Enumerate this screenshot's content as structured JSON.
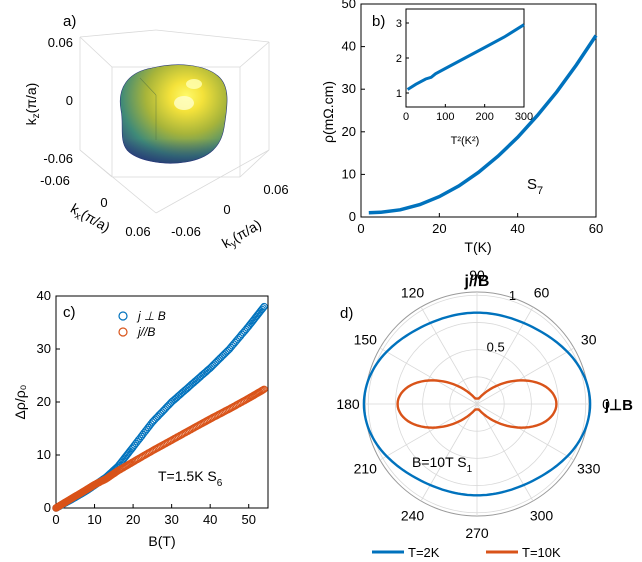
{
  "colors": {
    "blue": "#0072BD",
    "orange": "#D95319",
    "grid": "#d9d9d9"
  },
  "panels": {
    "a": {
      "label": "a)",
      "ticks": {
        "kz": [
          "0.06",
          "0",
          "-0.06"
        ],
        "kx": [
          "-0.06",
          "0",
          "0.06"
        ],
        "ky": [
          "-0.06",
          "0",
          "0.06"
        ]
      },
      "xlabel": "k_x(π/a)",
      "ylabel": "k_y(π/a)",
      "zlabel": "k_z(π/a)"
    },
    "b": {
      "label": "b)",
      "annotation_main": "S",
      "annotation_sub": "7"
    },
    "c": {
      "label": "c)",
      "annotation": "T=1.5K S",
      "annotation_sub": "6"
    },
    "d": {
      "label": "d)",
      "title": "j//B",
      "right_label": "j⊥B",
      "annotation": "B=10T S",
      "annotation_sub": "1",
      "legend": [
        "T=2K",
        "T=10K"
      ]
    }
  },
  "chart_data": [
    {
      "panel": "a",
      "type": "other",
      "description": "3D surface (Fermi surface)",
      "xlim": [
        -0.06,
        0.06
      ],
      "ylim": [
        -0.06,
        0.06
      ],
      "zlim": [
        -0.06,
        0.06
      ]
    },
    {
      "panel": "b",
      "type": "line",
      "xlabel": "T(K)",
      "ylabel": "ρ(mΩ.cm)",
      "xlim": [
        0,
        60
      ],
      "ylim": [
        0,
        50
      ],
      "xticks": [
        0,
        20,
        40,
        60
      ],
      "yticks": [
        0,
        10,
        20,
        30,
        40,
        50
      ],
      "series": [
        {
          "x": [
            2,
            5,
            10,
            15,
            20,
            25,
            30,
            35,
            40,
            45,
            50,
            55,
            60
          ],
          "y": [
            1.0,
            1.1,
            1.7,
            2.9,
            4.8,
            7.3,
            10.5,
            14.3,
            18.7,
            23.8,
            29.4,
            35.7,
            42.6
          ]
        }
      ],
      "inset": {
        "xlabel": "T²(K²)",
        "xlim": [
          0,
          300
        ],
        "ylim": [
          0.6,
          3.4
        ],
        "xticks": [
          0,
          100,
          200,
          300
        ],
        "yticks": [
          1,
          2,
          3
        ],
        "series": [
          {
            "x": [
              4,
              25,
              50,
              64,
              75,
              100,
              150,
              200,
              250,
              300
            ],
            "y": [
              1.1,
              1.25,
              1.4,
              1.45,
              1.55,
              1.7,
              2.0,
              2.3,
              2.6,
              2.95
            ]
          }
        ]
      }
    },
    {
      "panel": "c",
      "type": "scatter",
      "xlabel": "B(T)",
      "ylabel": "Δρ/ρ₀",
      "xlim": [
        0,
        55
      ],
      "ylim": [
        0,
        40
      ],
      "xticks": [
        0,
        10,
        20,
        30,
        40,
        50
      ],
      "yticks": [
        0,
        10,
        20,
        30,
        40
      ],
      "series": [
        {
          "name": "j ⊥ B",
          "x": [
            0,
            2,
            5,
            8,
            10,
            13,
            16,
            20,
            25,
            30,
            35,
            40,
            45,
            50,
            54
          ],
          "y": [
            0,
            0.8,
            2.0,
            3.3,
            4.3,
            5.8,
            7.8,
            11.5,
            16.2,
            20.0,
            23.2,
            26.4,
            30.0,
            34.3,
            38.0
          ]
        },
        {
          "name": "j//B",
          "x": [
            0,
            2,
            5,
            8,
            10,
            13,
            16,
            20,
            25,
            30,
            35,
            40,
            45,
            50,
            54
          ],
          "y": [
            0,
            0.9,
            2.2,
            3.5,
            4.4,
            5.5,
            7.0,
            8.7,
            10.8,
            12.8,
            14.8,
            16.8,
            18.7,
            20.7,
            22.4
          ]
        }
      ]
    },
    {
      "panel": "d",
      "type": "polar",
      "angle_ticks_deg": [
        0,
        30,
        60,
        90,
        120,
        150,
        180,
        210,
        240,
        270,
        300,
        330
      ],
      "radial_ticks": [
        {
          "value": 0.5,
          "label": "0.5"
        },
        {
          "value": 1,
          "label": "1"
        }
      ],
      "rlim": [
        0,
        1.03
      ],
      "series": [
        {
          "name": "T=2K",
          "a": 0.84,
          "b": 0.16
        },
        {
          "name": "T=10K",
          "a": 0.05,
          "b": 0.68
        }
      ]
    }
  ]
}
